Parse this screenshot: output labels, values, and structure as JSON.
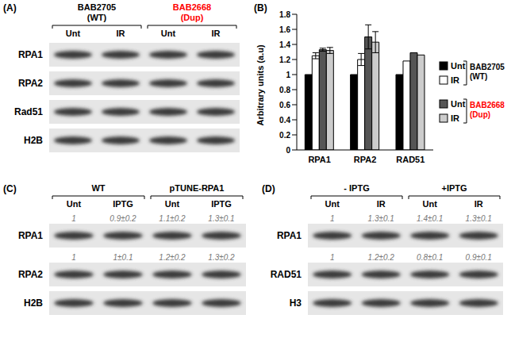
{
  "chart_data": {
    "type": "bar",
    "title": "(B)",
    "ylabel": "Arbitrary units (a.u)",
    "categories": [
      "RPA1",
      "RPA2",
      "RAD51"
    ],
    "ylim": [
      0,
      1.8
    ],
    "yticks": [
      0,
      0.2,
      0.4,
      0.6,
      0.8,
      1,
      1.2,
      1.4,
      1.6,
      1.8
    ],
    "grid": false,
    "legend_groups": [
      {
        "label": [
          "BAB2705",
          "(WT)"
        ],
        "color": "#000000"
      },
      {
        "label": [
          "BAB2668",
          "(Dup)"
        ],
        "color": "#ff0000"
      }
    ],
    "series": [
      {
        "name": "Unt",
        "group": 0,
        "color": "#000000",
        "values": [
          1,
          1,
          1
        ],
        "errors": [
          null,
          null,
          null
        ]
      },
      {
        "name": "IR",
        "group": 0,
        "color": "#ffffff",
        "values": [
          1.25,
          1.2,
          1.18
        ],
        "errors": [
          0.04,
          0.08,
          null
        ]
      },
      {
        "name": "Unt",
        "group": 1,
        "color": "#555555",
        "values": [
          1.33,
          1.5,
          1.29
        ],
        "errors": [
          0.02,
          0.16,
          null
        ]
      },
      {
        "name": "IR",
        "group": 1,
        "color": "#cccccc",
        "values": [
          1.32,
          1.43,
          1.26
        ],
        "errors": [
          0.04,
          0.14,
          null
        ]
      }
    ]
  },
  "blots": [
    {
      "panel": "(A)",
      "groups": [
        {
          "label": [
            "BAB2705",
            "(WT)"
          ],
          "color": "#000000",
          "lanes": [
            "Unt",
            "IR"
          ]
        },
        {
          "label": [
            "BAB2668",
            "(Dup)"
          ],
          "color": "#ff0000",
          "lanes": [
            "Unt",
            "IR"
          ]
        }
      ],
      "rows": [
        {
          "label": "RPA1",
          "quant": null
        },
        {
          "label": "RPA2",
          "quant": null
        },
        {
          "label": "Rad51",
          "quant": null
        },
        {
          "label": "H2B",
          "quant": null
        }
      ]
    },
    {
      "panel": "(C)",
      "groups": [
        {
          "label": [
            "WT"
          ],
          "color": "#000000",
          "lanes": [
            "Unt",
            "IPTG"
          ]
        },
        {
          "label": [
            "pTUNE-RPA1"
          ],
          "color": "#000000",
          "lanes": [
            "Unt",
            "IPTG"
          ]
        }
      ],
      "rows": [
        {
          "label": "RPA1",
          "quant": [
            "1",
            "0.9±0.2",
            "1.1±0.2",
            "1.3±0.1"
          ]
        },
        {
          "label": "RPA2",
          "quant": [
            "1",
            "1±0.1",
            "1.2±0.2",
            "1.3±0.2"
          ]
        },
        {
          "label": "H2B",
          "quant": null
        }
      ]
    },
    {
      "panel": "(D)",
      "groups": [
        {
          "label": [
            "- IPTG"
          ],
          "color": "#000000",
          "lanes": [
            "Unt",
            "IR"
          ]
        },
        {
          "label": [
            "+IPTG"
          ],
          "color": "#000000",
          "lanes": [
            "Unt",
            "IR"
          ]
        }
      ],
      "rows": [
        {
          "label": "RPA1",
          "quant": [
            "1",
            "1.3±0.1",
            "1.4±0.1",
            "1.3±0.1"
          ]
        },
        {
          "label": "RAD51",
          "quant": [
            "1",
            "1.2±0.2",
            "0.8±0.1",
            "0.9±0.1"
          ]
        },
        {
          "label": "H3",
          "quant": null
        }
      ]
    }
  ]
}
